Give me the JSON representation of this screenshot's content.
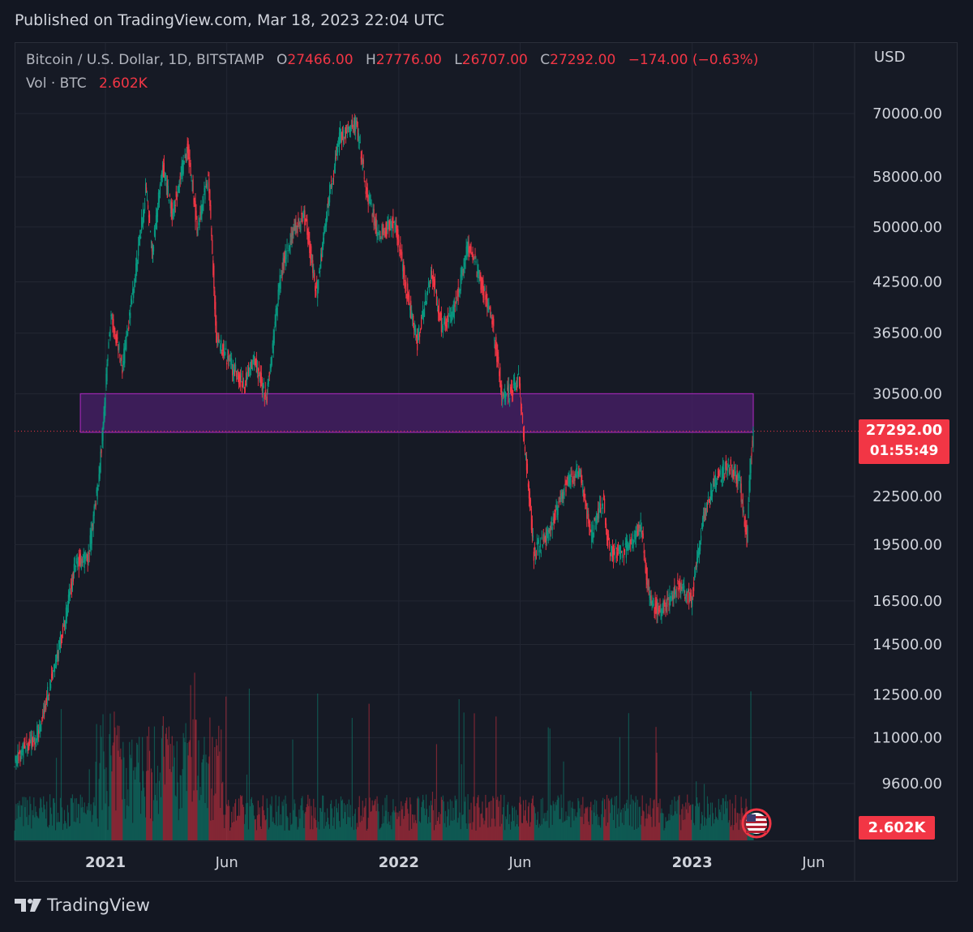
{
  "published": "Published on TradingView.com, Mar 18, 2023 22:04 UTC",
  "legend": {
    "symbol": "Bitcoin / U.S. Dollar, 1D, BITSTAMP",
    "open_label": "O",
    "open": "27466.00",
    "high_label": "H",
    "high": "27776.00",
    "low_label": "L",
    "low": "26707.00",
    "close_label": "C",
    "close": "27292.00",
    "change": "−174.00 (−0.63%)",
    "vol_label": "Vol · BTC",
    "vol_value": "2.602K"
  },
  "currency": "USD",
  "price_badge": {
    "price": "27292.00",
    "countdown": "01:55:49"
  },
  "vol_badge": "2.602K",
  "brand": "TradingView",
  "colors": {
    "up": "#089981",
    "down": "#f23645",
    "zone_fill": "#4a1f6a",
    "zone_border": "#9c27b0",
    "grid": "#232733",
    "text": "#d1d4dc",
    "bg": "#161a25"
  },
  "chart_data": {
    "type": "candlestick",
    "scale": "log",
    "y_ticks": [
      70000,
      58000,
      50000,
      42500,
      36500,
      30500,
      22500,
      19500,
      16500,
      14500,
      12500,
      11000,
      9600
    ],
    "y_tick_labels": [
      "70000.00",
      "58000.00",
      "50000.00",
      "42500.00",
      "36500.00",
      "30500.00",
      "22500.00",
      "19500.00",
      "16500.00",
      "14500.00",
      "12500.00",
      "11000.00",
      "9600.00"
    ],
    "x_ticks": [
      {
        "date": "2021-01-01",
        "label": "2021",
        "bold": true
      },
      {
        "date": "2021-06-01",
        "label": "Jun",
        "bold": false
      },
      {
        "date": "2022-01-01",
        "label": "2022",
        "bold": true
      },
      {
        "date": "2022-06-01",
        "label": "Jun",
        "bold": false
      },
      {
        "date": "2023-01-01",
        "label": "2023",
        "bold": true
      },
      {
        "date": "2023-06-01",
        "label": "Jun",
        "bold": false
      }
    ],
    "zone": {
      "from": "2020-12-19",
      "to": "2023-03-18",
      "low": 27200,
      "high": 30500
    },
    "last_price": 27292,
    "price_path": [
      [
        "2020-09-10",
        10300
      ],
      [
        "2020-09-25",
        10700
      ],
      [
        "2020-10-10",
        11200
      ],
      [
        "2020-10-25",
        13000
      ],
      [
        "2020-11-10",
        15300
      ],
      [
        "2020-11-25",
        18500
      ],
      [
        "2020-12-10",
        18600
      ],
      [
        "2020-12-25",
        24500
      ],
      [
        "2021-01-08",
        39000
      ],
      [
        "2021-01-22",
        33000
      ],
      [
        "2021-02-08",
        44000
      ],
      [
        "2021-02-20",
        56000
      ],
      [
        "2021-02-28",
        46000
      ],
      [
        "2021-03-13",
        60000
      ],
      [
        "2021-03-25",
        52000
      ],
      [
        "2021-04-13",
        63500
      ],
      [
        "2021-04-25",
        50000
      ],
      [
        "2021-05-09",
        58000
      ],
      [
        "2021-05-19",
        36000
      ],
      [
        "2021-06-08",
        33000
      ],
      [
        "2021-06-22",
        31500
      ],
      [
        "2021-07-05",
        34000
      ],
      [
        "2021-07-20",
        29800
      ],
      [
        "2021-08-07",
        43500
      ],
      [
        "2021-08-22",
        49500
      ],
      [
        "2021-09-06",
        51500
      ],
      [
        "2021-09-21",
        41000
      ],
      [
        "2021-10-06",
        55000
      ],
      [
        "2021-10-20",
        65500
      ],
      [
        "2021-11-09",
        68000
      ],
      [
        "2021-11-20",
        57000
      ],
      [
        "2021-12-05",
        49000
      ],
      [
        "2021-12-27",
        50500
      ],
      [
        "2022-01-10",
        41800
      ],
      [
        "2022-01-24",
        35500
      ],
      [
        "2022-02-10",
        44000
      ],
      [
        "2022-02-24",
        37000
      ],
      [
        "2022-03-10",
        39000
      ],
      [
        "2022-03-29",
        47500
      ],
      [
        "2022-04-26",
        38500
      ],
      [
        "2022-05-10",
        30000
      ],
      [
        "2022-05-30",
        31700
      ],
      [
        "2022-06-13",
        22000
      ],
      [
        "2022-06-18",
        19000
      ],
      [
        "2022-07-05",
        20000
      ],
      [
        "2022-07-30",
        23700
      ],
      [
        "2022-08-14",
        24300
      ],
      [
        "2022-08-28",
        20000
      ],
      [
        "2022-09-12",
        22300
      ],
      [
        "2022-09-20",
        19000
      ],
      [
        "2022-10-10",
        19200
      ],
      [
        "2022-10-29",
        20700
      ],
      [
        "2022-11-09",
        16500
      ],
      [
        "2022-11-22",
        15900
      ],
      [
        "2022-12-15",
        17300
      ],
      [
        "2022-12-31",
        16500
      ],
      [
        "2023-01-14",
        21000
      ],
      [
        "2023-01-30",
        23700
      ],
      [
        "2023-02-16",
        24700
      ],
      [
        "2023-03-01",
        23500
      ],
      [
        "2023-03-10",
        19800
      ],
      [
        "2023-03-14",
        24600
      ],
      [
        "2023-03-18",
        27292
      ]
    ]
  }
}
